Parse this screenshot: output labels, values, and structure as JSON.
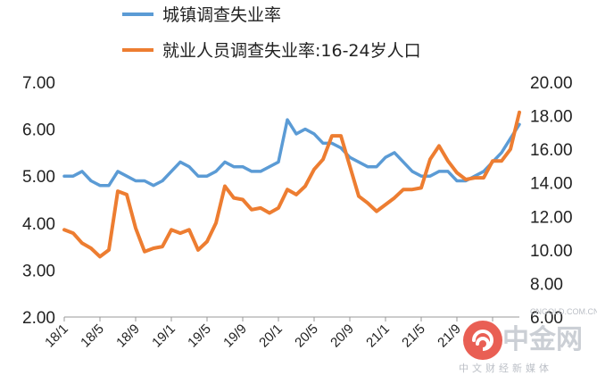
{
  "chart_data": {
    "type": "line",
    "title": "",
    "xlabel": "",
    "ylabel": "",
    "ylim_left": [
      2,
      7
    ],
    "ylim_right": [
      6,
      20
    ],
    "y_left_ticks": [
      "2.00",
      "3.00",
      "4.00",
      "5.00",
      "6.00",
      "7.00"
    ],
    "y_right_ticks": [
      "6.00",
      "8.00",
      "10.00",
      "12.00",
      "14.00",
      "16.00",
      "18.00",
      "20.00"
    ],
    "x_tick_labels": [
      "18/1",
      "18/5",
      "18/9",
      "19/1",
      "19/5",
      "19/9",
      "20/1",
      "20/5",
      "20/9",
      "21/1",
      "21/5",
      "21/9"
    ],
    "x": [
      "18/1",
      "18/2",
      "18/3",
      "18/4",
      "18/5",
      "18/6",
      "18/7",
      "18/8",
      "18/9",
      "18/10",
      "18/11",
      "18/12",
      "19/1",
      "19/2",
      "19/3",
      "19/4",
      "19/5",
      "19/6",
      "19/7",
      "19/8",
      "19/9",
      "19/10",
      "19/11",
      "19/12",
      "20/1",
      "20/2",
      "20/3",
      "20/4",
      "20/5",
      "20/6",
      "20/7",
      "20/8",
      "20/9",
      "20/10",
      "20/11",
      "20/12",
      "21/1",
      "21/2",
      "21/3",
      "21/4",
      "21/5",
      "21/6",
      "21/7",
      "21/8",
      "21/9",
      "21/10",
      "21/11",
      "21/12",
      "22/1",
      "22/2",
      "22/3",
      "22/4"
    ],
    "legend_position": "top",
    "series": [
      {
        "name": "城镇调查失业率",
        "axis": "left",
        "color": "#5B9BD5",
        "values": [
          5.0,
          5.0,
          5.1,
          4.9,
          4.8,
          4.8,
          5.1,
          5.0,
          4.9,
          4.9,
          4.8,
          4.9,
          5.1,
          5.3,
          5.2,
          5.0,
          5.0,
          5.1,
          5.3,
          5.2,
          5.2,
          5.1,
          5.1,
          5.2,
          5.3,
          6.2,
          5.9,
          6.0,
          5.9,
          5.7,
          5.7,
          5.6,
          5.4,
          5.3,
          5.2,
          5.2,
          5.4,
          5.5,
          5.3,
          5.1,
          5.0,
          5.0,
          5.1,
          5.1,
          4.9,
          4.9,
          5.0,
          5.1,
          5.3,
          5.5,
          5.8,
          6.1
        ]
      },
      {
        "name": "就业人员调查失业率:16-24岁人口",
        "axis": "right",
        "color": "#ED7D31",
        "values": [
          11.2,
          11.0,
          10.4,
          10.1,
          9.6,
          10.0,
          13.5,
          13.3,
          11.3,
          9.9,
          10.1,
          10.2,
          11.2,
          11.0,
          11.2,
          10.0,
          10.5,
          11.6,
          13.8,
          13.1,
          13.0,
          12.4,
          12.5,
          12.2,
          12.5,
          13.6,
          13.3,
          13.8,
          14.8,
          15.4,
          16.8,
          16.8,
          15.0,
          13.2,
          12.8,
          12.3,
          12.7,
          13.1,
          13.6,
          13.6,
          13.7,
          15.4,
          16.2,
          15.3,
          14.6,
          14.2,
          14.3,
          14.3,
          15.3,
          15.3,
          16.0,
          18.2
        ]
      }
    ]
  },
  "watermark": {
    "brand": "中金网",
    "domain": "CNGOLD.COM.CN",
    "tagline": "中文财经新媒体",
    "logo_color": "#e8574b"
  }
}
